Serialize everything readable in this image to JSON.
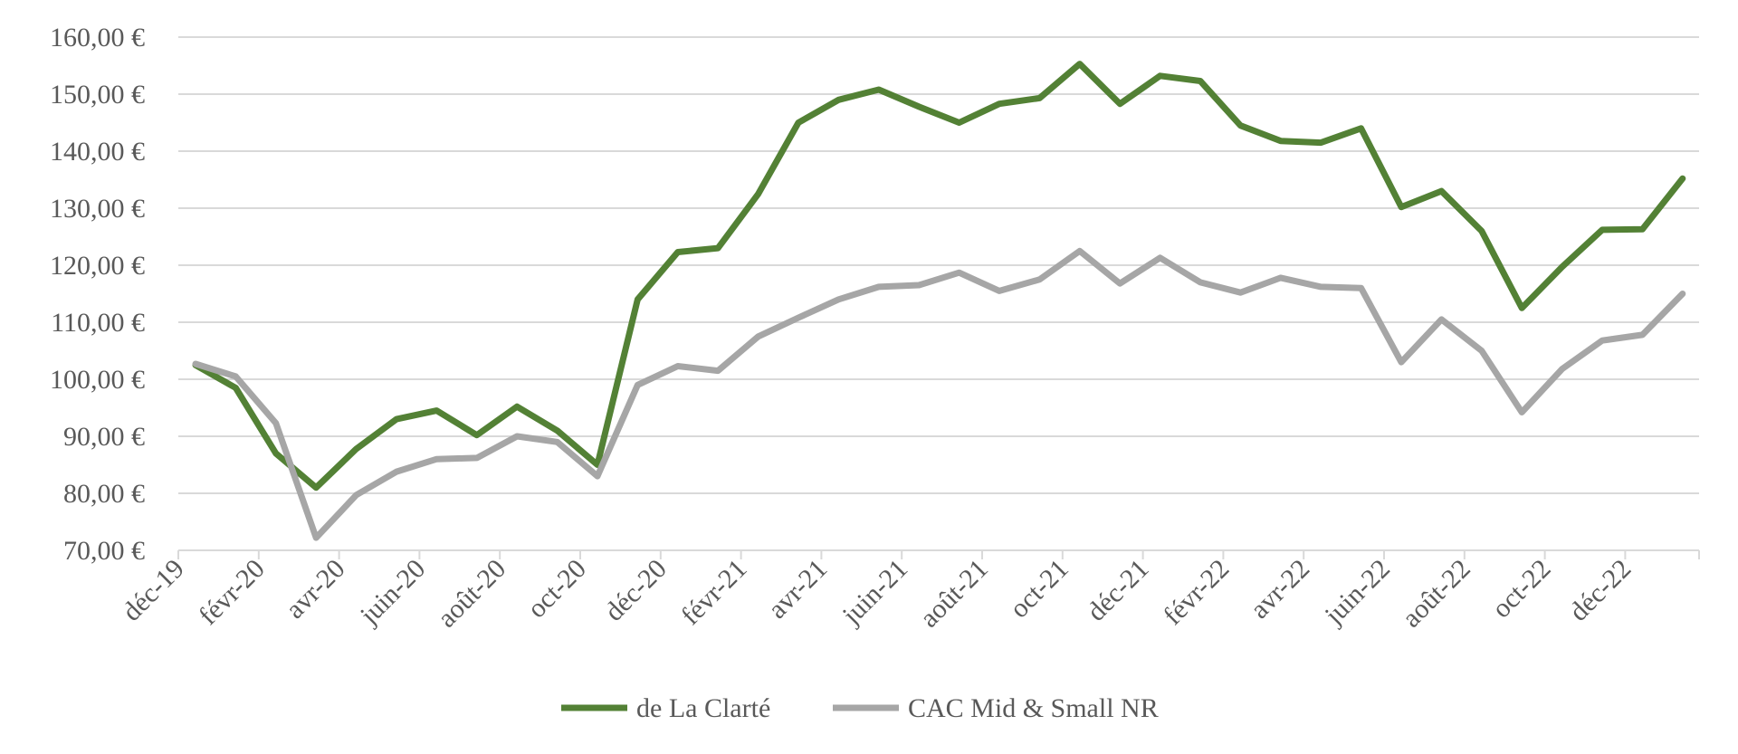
{
  "chart_data": {
    "type": "line",
    "title": "",
    "xlabel": "",
    "ylabel": "",
    "ylim": [
      70,
      160
    ],
    "y_ticks": [
      70,
      80,
      90,
      100,
      110,
      120,
      130,
      140,
      150,
      160
    ],
    "y_tick_labels": [
      "70,00 €",
      "80,00 €",
      "90,00 €",
      "100,00 €",
      "110,00 €",
      "120,00 €",
      "130,00 €",
      "140,00 €",
      "150,00 €",
      "160,00 €"
    ],
    "grid": true,
    "legend_position": "bottom",
    "x": [
      "déc-19",
      "janv-20",
      "févr-20",
      "mars-20",
      "avr-20",
      "mai-20",
      "juin-20",
      "juil-20",
      "août-20",
      "sept-20",
      "oct-20",
      "nov-20",
      "déc-20",
      "janv-21",
      "févr-21",
      "mars-21",
      "avr-21",
      "mai-21",
      "juin-21",
      "juil-21",
      "août-21",
      "sept-21",
      "oct-21",
      "nov-21",
      "déc-21",
      "janv-22",
      "févr-22",
      "mars-22",
      "avr-22",
      "mai-22",
      "juin-22",
      "juil-22",
      "août-22",
      "sept-22",
      "oct-22",
      "nov-22",
      "déc-22",
      "janv-23"
    ],
    "x_tick_labels": [
      "déc-19",
      "févr-20",
      "avr-20",
      "juin-20",
      "août-20",
      "oct-20",
      "déc-20",
      "févr-21",
      "avr-21",
      "juin-21",
      "août-21",
      "oct-21",
      "déc-21",
      "févr-22",
      "avr-22",
      "juin-22",
      "août-22",
      "oct-22",
      "déc-22"
    ],
    "series": [
      {
        "name": "de La Clarté",
        "color": "#538135",
        "values": [
          102.5,
          98.5,
          87.0,
          81.0,
          87.8,
          93.0,
          94.5,
          90.2,
          95.2,
          91.0,
          85.0,
          114.0,
          122.3,
          123.0,
          132.5,
          145.0,
          149.0,
          150.8,
          147.8,
          145.0,
          148.3,
          149.3,
          155.3,
          148.3,
          153.2,
          152.3,
          144.5,
          141.8,
          141.5,
          144.0,
          130.2,
          133.0,
          126.0,
          112.5,
          119.7,
          126.2,
          126.3,
          135.2
        ]
      },
      {
        "name": "CAC Mid & Small NR",
        "color": "#a6a6a6",
        "values": [
          102.7,
          100.5,
          92.3,
          72.2,
          79.7,
          83.8,
          86.0,
          86.2,
          90.0,
          89.0,
          83.0,
          99.0,
          102.3,
          101.5,
          107.5,
          110.8,
          114.0,
          116.2,
          116.5,
          118.7,
          115.5,
          117.5,
          122.5,
          116.8,
          121.3,
          117.0,
          115.2,
          117.8,
          116.2,
          116.0,
          103.0,
          110.5,
          105.0,
          94.2,
          101.8,
          106.8,
          107.8,
          115.0
        ]
      }
    ]
  }
}
